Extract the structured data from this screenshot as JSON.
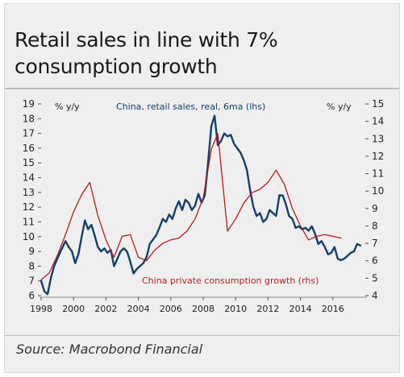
{
  "title_line1": "Retail sales in line with 7%",
  "title_line2": "consumption growth",
  "source": "Source: Macrobond Financial",
  "colors": {
    "lhs": "#123f6b",
    "rhs": "#b71c1c",
    "panel": "#efefef"
  },
  "chart_data": {
    "type": "line",
    "left_unit": "% y/y",
    "right_unit": "% y/y",
    "xlim": [
      1998,
      2018
    ],
    "ylim_left": [
      6,
      19
    ],
    "ylim_right": [
      4,
      15
    ],
    "x_ticks": [
      "1998",
      "2000",
      "2002",
      "2004",
      "2006",
      "2008",
      "2010",
      "2012",
      "2014",
      "2016"
    ],
    "left_ticks": [
      "6",
      "7",
      "8",
      "9",
      "10",
      "11",
      "12",
      "13",
      "14",
      "15",
      "16",
      "17",
      "18",
      "19"
    ],
    "right_ticks": [
      "4",
      "5",
      "6",
      "7",
      "8",
      "9",
      "10",
      "11",
      "12",
      "13",
      "14",
      "15"
    ],
    "grid": false,
    "series": [
      {
        "name": "China, retail sales, real, 6ma (lhs)",
        "axis": "left",
        "color": "#123f6b",
        "x": [
          1998.0,
          1998.2,
          1998.4,
          1998.6,
          1998.8,
          1999.0,
          1999.2,
          1999.5,
          1999.7,
          1999.9,
          2000.1,
          2000.3,
          2000.5,
          2000.7,
          2000.9,
          2001.1,
          2001.3,
          2001.5,
          2001.7,
          2001.9,
          2002.1,
          2002.3,
          2002.5,
          2002.7,
          2002.9,
          2003.1,
          2003.3,
          2003.5,
          2003.7,
          2003.9,
          2004.1,
          2004.3,
          2004.5,
          2004.7,
          2004.9,
          2005.1,
          2005.3,
          2005.5,
          2005.7,
          2005.9,
          2006.1,
          2006.3,
          2006.5,
          2006.7,
          2006.9,
          2007.1,
          2007.3,
          2007.5,
          2007.7,
          2007.9,
          2008.1,
          2008.3,
          2008.5,
          2008.7,
          2008.9,
          2009.1,
          2009.3,
          2009.5,
          2009.7,
          2009.9,
          2010.1,
          2010.3,
          2010.5,
          2010.7,
          2010.9,
          2011.1,
          2011.3,
          2011.5,
          2011.7,
          2011.9,
          2012.1,
          2012.3,
          2012.5,
          2012.7,
          2012.9,
          2013.1,
          2013.3,
          2013.5,
          2013.7,
          2013.9,
          2014.1,
          2014.3,
          2014.5,
          2014.7,
          2014.9,
          2015.1,
          2015.3,
          2015.5,
          2015.7,
          2015.9,
          2016.1,
          2016.3,
          2016.5,
          2016.7,
          2016.9,
          2017.1,
          2017.3,
          2017.5,
          2017.7
        ],
        "y": [
          7.0,
          6.3,
          6.1,
          7.2,
          8.0,
          8.5,
          9.0,
          9.7,
          9.3,
          9.0,
          8.2,
          8.8,
          10.0,
          11.1,
          10.5,
          10.8,
          10.1,
          9.3,
          9.0,
          9.2,
          8.9,
          9.1,
          8.0,
          8.5,
          9.0,
          9.2,
          9.0,
          8.3,
          7.5,
          7.8,
          8.0,
          8.2,
          8.6,
          9.5,
          9.8,
          10.1,
          10.6,
          11.2,
          11.0,
          11.5,
          11.2,
          11.9,
          12.4,
          11.8,
          12.5,
          12.3,
          11.8,
          12.1,
          12.9,
          12.3,
          12.8,
          15.0,
          17.5,
          18.2,
          16.2,
          16.5,
          17.0,
          16.8,
          16.9,
          16.3,
          16.0,
          15.7,
          15.2,
          14.5,
          13.1,
          12.0,
          11.4,
          11.6,
          11.0,
          11.2,
          11.8,
          11.6,
          11.4,
          12.8,
          12.8,
          12.2,
          11.4,
          11.2,
          10.6,
          10.7,
          10.5,
          10.6,
          10.4,
          10.7,
          10.2,
          9.5,
          9.7,
          9.3,
          8.8,
          8.9,
          9.3,
          8.5,
          8.4,
          8.5,
          8.7,
          8.9,
          9.0,
          9.5,
          9.4
        ]
      },
      {
        "name": "China private consumption growth (rhs)",
        "axis": "right",
        "color": "#b71c1c",
        "x": [
          1998.0,
          1998.5,
          1999.0,
          1999.5,
          2000.0,
          2000.5,
          2001.0,
          2001.5,
          2002.0,
          2002.5,
          2003.0,
          2003.5,
          2004.0,
          2004.5,
          2005.0,
          2005.5,
          2006.0,
          2006.5,
          2007.0,
          2007.5,
          2008.0,
          2008.5,
          2008.9,
          2009.5,
          2010.0,
          2010.5,
          2011.0,
          2011.5,
          2012.0,
          2012.5,
          2013.0,
          2013.5,
          2014.0,
          2014.5,
          2015.0,
          2015.5,
          2016.0,
          2016.5
        ],
        "y": [
          4.9,
          5.3,
          6.3,
          7.5,
          8.8,
          9.8,
          10.5,
          8.6,
          7.2,
          6.2,
          7.4,
          7.5,
          6.2,
          6.0,
          6.6,
          7.0,
          7.2,
          7.3,
          7.7,
          8.4,
          9.6,
          12.4,
          13.3,
          7.7,
          8.4,
          9.3,
          9.9,
          10.1,
          10.5,
          11.2,
          10.4,
          9.0,
          8.0,
          7.2,
          7.4,
          7.5,
          7.4,
          7.3
        ]
      }
    ]
  }
}
